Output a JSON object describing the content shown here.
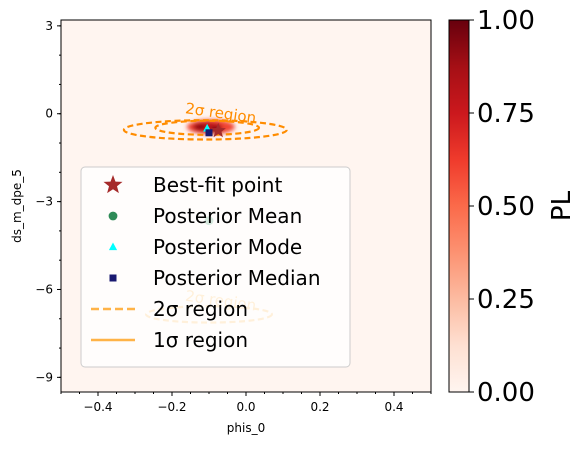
{
  "chart_data": {
    "type": "heatmap",
    "title": "",
    "xlabel": "phis_0",
    "ylabel": "ds_m_dpe_5",
    "xlim": [
      -0.5,
      0.5
    ],
    "ylim": [
      -9.5,
      3.2
    ],
    "xticks": [
      -0.4,
      -0.2,
      0.0,
      0.2,
      0.4
    ],
    "xtick_labels": [
      "−0.4",
      "−0.2",
      "0.0",
      "0.2",
      "0.4"
    ],
    "yticks": [
      3,
      0,
      -3,
      -6,
      -9
    ],
    "ytick_labels": [
      "3",
      "0",
      "−3",
      "−6",
      "−9"
    ],
    "grid": false,
    "colormap": "Reds",
    "background_color": "#fff5f0",
    "colorbar": {
      "label": "PL",
      "range": [
        0.0,
        1.0
      ],
      "ticks": [
        0.0,
        0.25,
        0.5,
        0.75,
        1.0
      ],
      "tick_labels": [
        "0.00",
        "0.25",
        "0.50",
        "0.75",
        "1.00"
      ],
      "stops": [
        "#fff5f0",
        "#fee0d2",
        "#fcbba1",
        "#fc9272",
        "#fb6a4a",
        "#ef3b2c",
        "#cb181d",
        "#a50f15",
        "#67000d"
      ]
    },
    "blobs": [
      {
        "cx": -0.095,
        "cy": -0.45,
        "rx": 0.065,
        "ry": 0.25,
        "level": 0.6
      },
      {
        "cx": -0.105,
        "cy": -0.45,
        "rx": 0.04,
        "ry": 0.17,
        "level": 0.8
      },
      {
        "cx": -0.08,
        "cy": -0.55,
        "rx": 0.016,
        "ry": 0.09,
        "level": 1.0
      },
      {
        "cx": -0.125,
        "cy": -0.45,
        "rx": 0.015,
        "ry": 0.08,
        "level": 0.95
      }
    ],
    "contours": [
      {
        "region": "2σ",
        "cx": -0.11,
        "cy": -0.55,
        "rx": 0.22,
        "ry": 0.33,
        "color": "#ff8c00",
        "style": "dashed"
      },
      {
        "region": "1σ",
        "cx": -0.105,
        "cy": -0.48,
        "rx": 0.14,
        "ry": 0.24,
        "color": "#ff8c00",
        "style": "dashed"
      },
      {
        "region": "2σ",
        "cx": -0.1,
        "cy": -6.85,
        "rx": 0.17,
        "ry": 0.28,
        "color": "#ffb347",
        "style": "dashed"
      }
    ],
    "contour_labels": [
      {
        "text": "2σ region",
        "x": -0.07,
        "y": -0.15,
        "color": "#ff8c00"
      },
      {
        "text": "2σ region",
        "x": -0.07,
        "y": -6.55,
        "color": "#ffb347"
      }
    ],
    "points": {
      "best_fit": {
        "x": -0.075,
        "y": -0.58,
        "color": "#a52a2a"
      },
      "mean": {
        "x": -0.1,
        "y": -3.65,
        "color": "#2e8b57"
      },
      "mode": {
        "x": -0.105,
        "y": -0.5,
        "color": "#00ffff"
      },
      "median": {
        "x": -0.1,
        "y": -0.65,
        "color": "#191970"
      }
    },
    "legend": {
      "placement": "center-left",
      "entries": [
        {
          "label": "Best-fit point",
          "marker": "star",
          "color": "#a52a2a"
        },
        {
          "label": "Posterior Mean",
          "marker": "circle",
          "color": "#2e8b57"
        },
        {
          "label": "Posterior Mode",
          "marker": "triangle",
          "color": "#00ffff"
        },
        {
          "label": "Posterior Median",
          "marker": "square",
          "color": "#191970"
        },
        {
          "label": "2σ region",
          "marker": "dashed-line",
          "color": "#ffb347"
        },
        {
          "label": "1σ region",
          "marker": "solid-line",
          "color": "#ffb347"
        }
      ]
    }
  }
}
